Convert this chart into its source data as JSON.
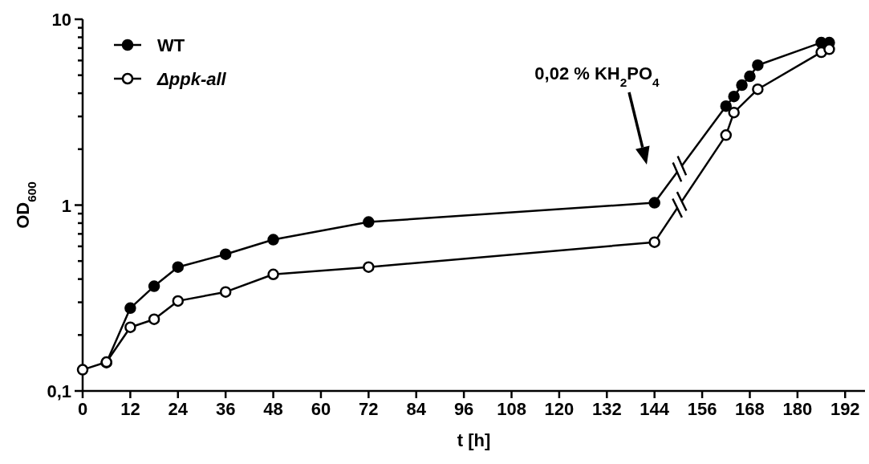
{
  "chart_data": {
    "type": "line",
    "xlabel": "t [h]",
    "ylabel": "OD$_{600}$",
    "log": "y",
    "xlim": [
      0,
      197
    ],
    "ylim": [
      0.1,
      10
    ],
    "xticks": [
      0,
      12,
      24,
      36,
      48,
      60,
      72,
      84,
      96,
      108,
      120,
      132,
      144,
      156,
      168,
      180,
      192
    ],
    "yticks": [
      {
        "value": 0.1,
        "label": "0,1"
      },
      {
        "value": 0.2,
        "label": null
      },
      {
        "value": 0.3,
        "label": null
      },
      {
        "value": 0.4,
        "label": null
      },
      {
        "value": 0.5,
        "label": null
      },
      {
        "value": 0.6,
        "label": null
      },
      {
        "value": 0.7,
        "label": null
      },
      {
        "value": 0.8,
        "label": null
      },
      {
        "value": 0.9,
        "label": null
      },
      1,
      {
        "value": 2,
        "label": null
      },
      {
        "value": 3,
        "label": null
      },
      {
        "value": 4,
        "label": null
      },
      {
        "value": 5,
        "label": null
      },
      {
        "value": 6,
        "label": null
      },
      {
        "value": 7,
        "label": null
      },
      {
        "value": 8,
        "label": null
      },
      {
        "value": 9,
        "label": null
      },
      10
    ],
    "marker": "circle",
    "line_style": "solid",
    "legend": "top left",
    "grid": false,
    "annotations": [
      "0,02 % KH$_{2}$PO$_{4}$"
    ],
    "series": [
      {
        "name": "WT",
        "color": "#000000",
        "x": [
          6,
          12,
          18,
          24,
          36,
          48,
          72,
          144,
          162,
          164,
          166,
          168,
          170,
          186,
          188
        ],
        "values": [
          0.142,
          0.279,
          0.366,
          0.464,
          0.544,
          0.652,
          0.811,
          1.03,
          3.41,
          3.84,
          4.42,
          4.93,
          5.66,
          7.49,
          7.49
        ]
      },
      {
        "name": "Δppk-all",
        "color": "#000000",
        "x": [
          0,
          6,
          12,
          18,
          24,
          36,
          48,
          72,
          144,
          162,
          164,
          170,
          186,
          188
        ],
        "values": [
          0.13,
          0.143,
          0.22,
          0.243,
          0.305,
          0.341,
          0.424,
          0.464,
          0.632,
          2.38,
          3.15,
          4.2,
          6.65,
          6.9
        ]
      }
    ]
  }
}
